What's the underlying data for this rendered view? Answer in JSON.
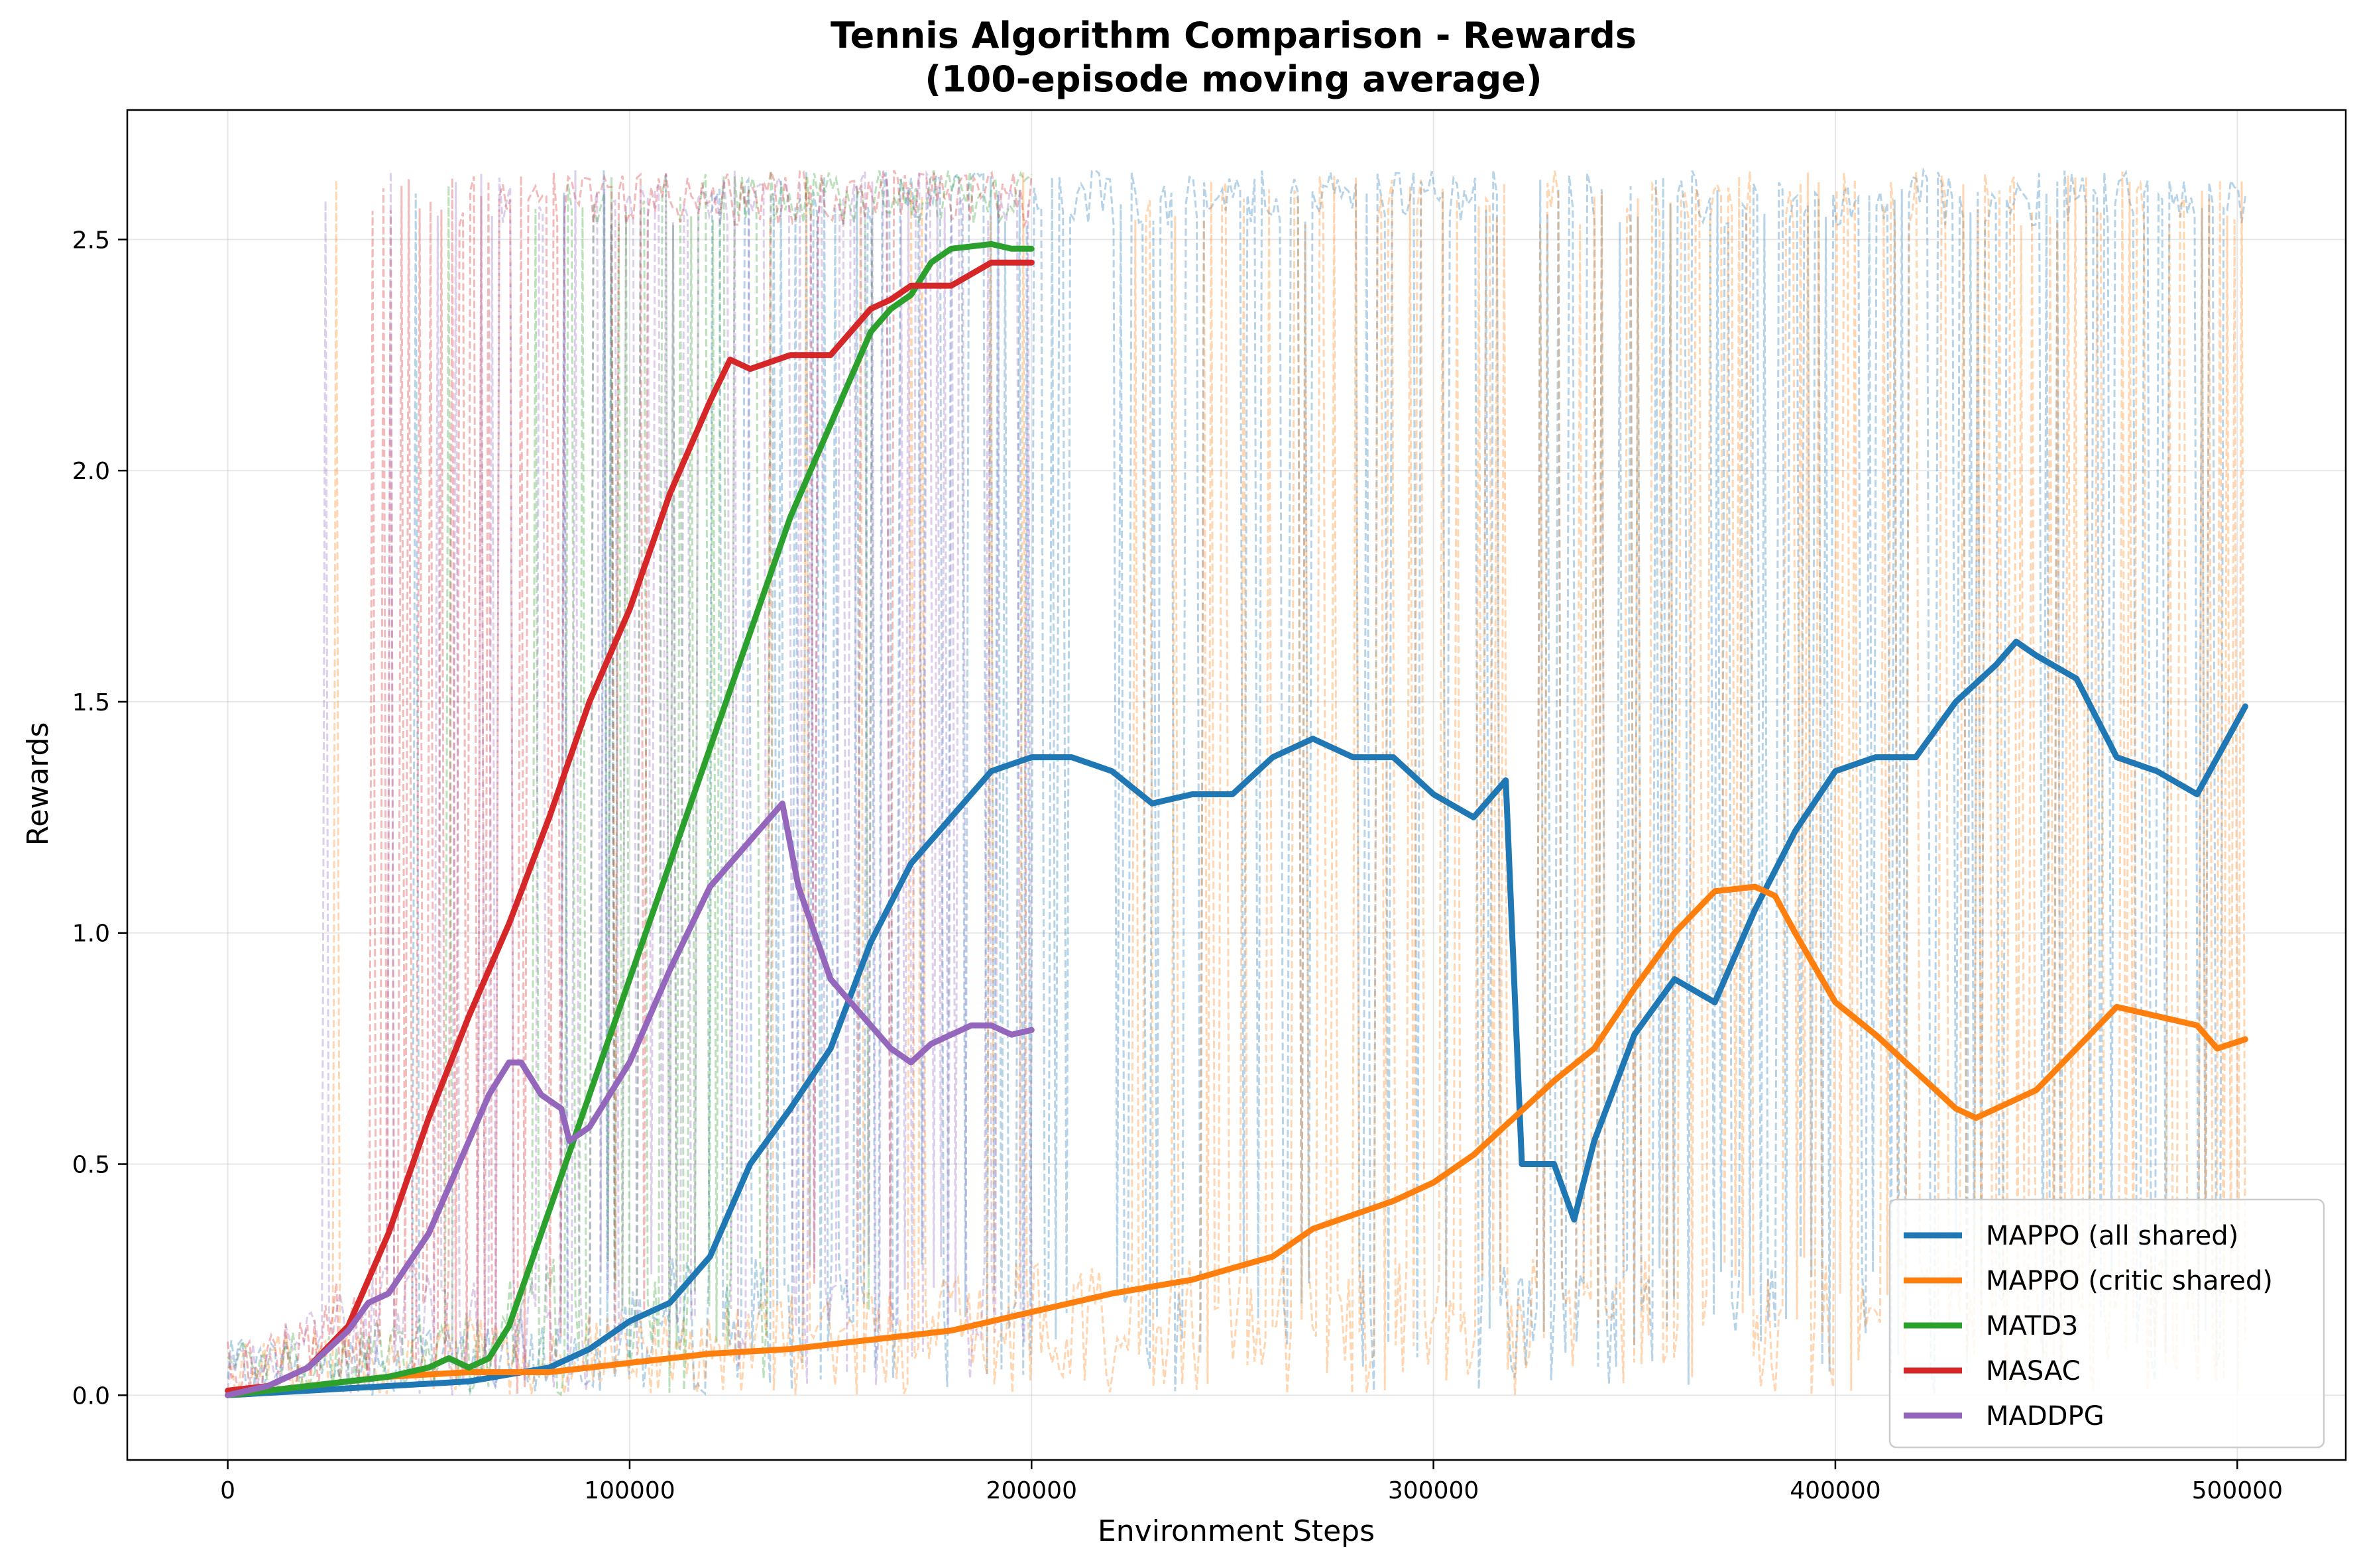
{
  "chart_data": {
    "type": "line",
    "title": "Tennis Algorithm Comparison - Rewards",
    "subtitle": "(100-episode moving average)",
    "xlabel": "Environment Steps",
    "ylabel": "Rewards",
    "xlim": [
      -25000,
      527000
    ],
    "ylim": [
      -0.14,
      2.78
    ],
    "x_ticks": [
      0,
      100000,
      200000,
      300000,
      400000,
      500000
    ],
    "x_tick_labels": [
      "0",
      "100000",
      "200000",
      "300000",
      "400000",
      "500000"
    ],
    "y_ticks": [
      0.0,
      0.5,
      1.0,
      1.5,
      2.0,
      2.5
    ],
    "y_tick_labels": [
      "0.0",
      "0.5",
      "1.0",
      "1.5",
      "2.0",
      "2.5"
    ],
    "grid": true,
    "legend_position": "bottom-right",
    "raw_episode_rewards": {
      "style": "dashed, semi-transparent",
      "range": [
        0.0,
        2.65
      ],
      "x_extent": {
        "MAPPO (all shared)": [
          0,
          502000
        ],
        "MAPPO (critic shared)": [
          0,
          502000
        ],
        "MATD3": [
          0,
          200000
        ],
        "MASAC": [
          0,
          200000
        ],
        "MADDPG": [
          0,
          200000
        ]
      }
    },
    "series": [
      {
        "name": "MAPPO (all shared)",
        "color": "#1f77b4",
        "x": [
          0,
          20000,
          40000,
          60000,
          80000,
          90000,
          100000,
          110000,
          120000,
          130000,
          140000,
          150000,
          160000,
          170000,
          180000,
          190000,
          200000,
          210000,
          220000,
          230000,
          240000,
          250000,
          260000,
          270000,
          280000,
          290000,
          300000,
          310000,
          318000,
          322000,
          330000,
          335000,
          340000,
          350000,
          360000,
          370000,
          380000,
          390000,
          400000,
          410000,
          420000,
          430000,
          440000,
          445000,
          450000,
          460000,
          470000,
          480000,
          490000,
          502000
        ],
        "y": [
          0.0,
          0.01,
          0.02,
          0.03,
          0.06,
          0.1,
          0.16,
          0.2,
          0.3,
          0.5,
          0.62,
          0.75,
          0.98,
          1.15,
          1.25,
          1.35,
          1.38,
          1.38,
          1.35,
          1.28,
          1.3,
          1.3,
          1.38,
          1.42,
          1.38,
          1.38,
          1.3,
          1.25,
          1.33,
          0.5,
          0.5,
          0.38,
          0.55,
          0.78,
          0.9,
          0.85,
          1.05,
          1.22,
          1.35,
          1.38,
          1.38,
          1.5,
          1.58,
          1.63,
          1.6,
          1.55,
          1.38,
          1.35,
          1.3,
          1.49
        ]
      },
      {
        "name": "MAPPO (critic shared)",
        "color": "#ff7f0e",
        "x": [
          0,
          20000,
          40000,
          60000,
          80000,
          100000,
          120000,
          140000,
          160000,
          180000,
          200000,
          220000,
          240000,
          260000,
          270000,
          280000,
          290000,
          300000,
          310000,
          320000,
          330000,
          340000,
          350000,
          360000,
          370000,
          380000,
          385000,
          390000,
          400000,
          410000,
          420000,
          430000,
          435000,
          440000,
          450000,
          460000,
          470000,
          480000,
          490000,
          495000,
          502000
        ],
        "y": [
          0.0,
          0.02,
          0.04,
          0.05,
          0.05,
          0.07,
          0.09,
          0.1,
          0.12,
          0.14,
          0.18,
          0.22,
          0.25,
          0.3,
          0.36,
          0.39,
          0.42,
          0.46,
          0.52,
          0.6,
          0.68,
          0.75,
          0.88,
          1.0,
          1.09,
          1.1,
          1.08,
          1.0,
          0.85,
          0.78,
          0.7,
          0.62,
          0.6,
          0.62,
          0.66,
          0.75,
          0.84,
          0.82,
          0.8,
          0.75,
          0.77
        ]
      },
      {
        "name": "MATD3",
        "color": "#2ca02c",
        "x": [
          0,
          10000,
          20000,
          30000,
          40000,
          50000,
          55000,
          60000,
          65000,
          70000,
          80000,
          90000,
          100000,
          110000,
          120000,
          130000,
          140000,
          150000,
          160000,
          165000,
          170000,
          175000,
          180000,
          190000,
          195000,
          200000
        ],
        "y": [
          0.0,
          0.01,
          0.02,
          0.03,
          0.04,
          0.06,
          0.08,
          0.06,
          0.08,
          0.15,
          0.4,
          0.65,
          0.9,
          1.15,
          1.4,
          1.65,
          1.9,
          2.1,
          2.3,
          2.35,
          2.38,
          2.45,
          2.48,
          2.49,
          2.48,
          2.48
        ]
      },
      {
        "name": "MASAC",
        "color": "#d62728",
        "x": [
          0,
          10000,
          20000,
          30000,
          40000,
          50000,
          60000,
          70000,
          80000,
          90000,
          100000,
          110000,
          120000,
          125000,
          130000,
          140000,
          150000,
          160000,
          165000,
          170000,
          180000,
          190000,
          195000,
          200000
        ],
        "y": [
          0.01,
          0.02,
          0.06,
          0.15,
          0.35,
          0.6,
          0.82,
          1.02,
          1.25,
          1.5,
          1.7,
          1.95,
          2.15,
          2.24,
          2.22,
          2.25,
          2.25,
          2.35,
          2.37,
          2.4,
          2.4,
          2.45,
          2.45,
          2.45
        ]
      },
      {
        "name": "MADDPG",
        "color": "#9467bd",
        "x": [
          0,
          10000,
          20000,
          30000,
          35000,
          40000,
          50000,
          60000,
          65000,
          70000,
          73000,
          78000,
          83000,
          85000,
          90000,
          100000,
          110000,
          120000,
          130000,
          135000,
          138000,
          142000,
          146000,
          150000,
          155000,
          160000,
          165000,
          170000,
          175000,
          180000,
          185000,
          190000,
          195000,
          200000
        ],
        "y": [
          0.0,
          0.02,
          0.06,
          0.14,
          0.2,
          0.22,
          0.35,
          0.55,
          0.65,
          0.72,
          0.72,
          0.65,
          0.62,
          0.55,
          0.58,
          0.72,
          0.92,
          1.1,
          1.2,
          1.25,
          1.28,
          1.1,
          1.0,
          0.9,
          0.85,
          0.8,
          0.75,
          0.72,
          0.76,
          0.78,
          0.8,
          0.8,
          0.78,
          0.79
        ]
      }
    ]
  }
}
